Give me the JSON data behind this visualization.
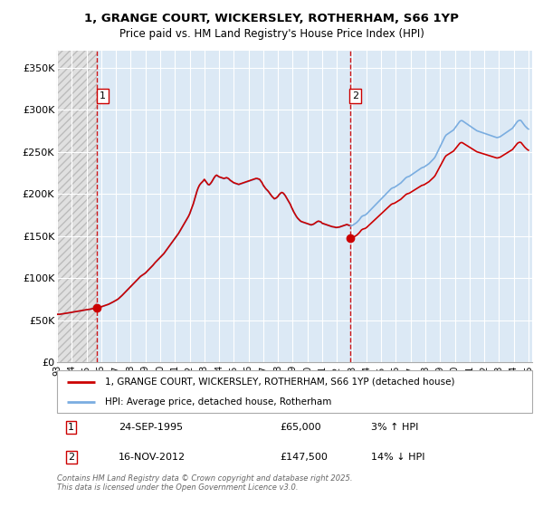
{
  "title_line1": "1, GRANGE COURT, WICKERSLEY, ROTHERHAM, S66 1YP",
  "title_line2": "Price paid vs. HM Land Registry's House Price Index (HPI)",
  "background_color": "#ffffff",
  "plot_bg_color": "#dce9f5",
  "hatch_bg_color": "#e8e8e8",
  "grid_color": "#ffffff",
  "ylim": [
    0,
    370000
  ],
  "yticks": [
    0,
    50000,
    100000,
    150000,
    200000,
    250000,
    300000,
    350000
  ],
  "ytick_labels": [
    "£0",
    "£50K",
    "£100K",
    "£150K",
    "£200K",
    "£250K",
    "£300K",
    "£350K"
  ],
  "legend_line1": "1, GRANGE COURT, WICKERSLEY, ROTHERHAM, S66 1YP (detached house)",
  "legend_line2": "HPI: Average price, detached house, Rotherham",
  "sold_color": "#cc0000",
  "hpi_color": "#7aade0",
  "note1_box": "1",
  "note1_date": "24-SEP-1995",
  "note1_price": "£65,000",
  "note1_hpi": "3% ↑ HPI",
  "note2_box": "2",
  "note2_date": "16-NOV-2012",
  "note2_price": "£147,500",
  "note2_hpi": "14% ↓ HPI",
  "footer": "Contains HM Land Registry data © Crown copyright and database right 2025.\nThis data is licensed under the Open Government Licence v3.0.",
  "hpi_data_x": [
    1993.0,
    1993.083,
    1993.167,
    1993.25,
    1993.333,
    1993.417,
    1993.5,
    1993.583,
    1993.667,
    1993.75,
    1993.833,
    1993.917,
    1994.0,
    1994.083,
    1994.167,
    1994.25,
    1994.333,
    1994.417,
    1994.5,
    1994.583,
    1994.667,
    1994.75,
    1994.833,
    1994.917,
    1995.0,
    1995.083,
    1995.167,
    1995.25,
    1995.333,
    1995.417,
    1995.5,
    1995.583,
    1995.667,
    1995.75,
    1995.833,
    1995.917,
    1996.0,
    1996.083,
    1996.167,
    1996.25,
    1996.333,
    1996.417,
    1996.5,
    1996.583,
    1996.667,
    1996.75,
    1996.833,
    1996.917,
    1997.0,
    1997.083,
    1997.167,
    1997.25,
    1997.333,
    1997.417,
    1997.5,
    1997.583,
    1997.667,
    1997.75,
    1997.833,
    1997.917,
    1998.0,
    1998.083,
    1998.167,
    1998.25,
    1998.333,
    1998.417,
    1998.5,
    1998.583,
    1998.667,
    1998.75,
    1998.833,
    1998.917,
    1999.0,
    1999.083,
    1999.167,
    1999.25,
    1999.333,
    1999.417,
    1999.5,
    1999.583,
    1999.667,
    1999.75,
    1999.833,
    1999.917,
    2000.0,
    2000.083,
    2000.167,
    2000.25,
    2000.333,
    2000.417,
    2000.5,
    2000.583,
    2000.667,
    2000.75,
    2000.833,
    2000.917,
    2001.0,
    2001.083,
    2001.167,
    2001.25,
    2001.333,
    2001.417,
    2001.5,
    2001.583,
    2001.667,
    2001.75,
    2001.833,
    2001.917,
    2002.0,
    2002.083,
    2002.167,
    2002.25,
    2002.333,
    2002.417,
    2002.5,
    2002.583,
    2002.667,
    2002.75,
    2002.833,
    2002.917,
    2003.0,
    2003.083,
    2003.167,
    2003.25,
    2003.333,
    2003.417,
    2003.5,
    2003.583,
    2003.667,
    2003.75,
    2003.833,
    2003.917,
    2004.0,
    2004.083,
    2004.167,
    2004.25,
    2004.333,
    2004.417,
    2004.5,
    2004.583,
    2004.667,
    2004.75,
    2004.833,
    2004.917,
    2005.0,
    2005.083,
    2005.167,
    2005.25,
    2005.333,
    2005.417,
    2005.5,
    2005.583,
    2005.667,
    2005.75,
    2005.833,
    2005.917,
    2006.0,
    2006.083,
    2006.167,
    2006.25,
    2006.333,
    2006.417,
    2006.5,
    2006.583,
    2006.667,
    2006.75,
    2006.833,
    2006.917,
    2007.0,
    2007.083,
    2007.167,
    2007.25,
    2007.333,
    2007.417,
    2007.5,
    2007.583,
    2007.667,
    2007.75,
    2007.833,
    2007.917,
    2008.0,
    2008.083,
    2008.167,
    2008.25,
    2008.333,
    2008.417,
    2008.5,
    2008.583,
    2008.667,
    2008.75,
    2008.833,
    2008.917,
    2009.0,
    2009.083,
    2009.167,
    2009.25,
    2009.333,
    2009.417,
    2009.5,
    2009.583,
    2009.667,
    2009.75,
    2009.833,
    2009.917,
    2010.0,
    2010.083,
    2010.167,
    2010.25,
    2010.333,
    2010.417,
    2010.5,
    2010.583,
    2010.667,
    2010.75,
    2010.833,
    2010.917,
    2011.0,
    2011.083,
    2011.167,
    2011.25,
    2011.333,
    2011.417,
    2011.5,
    2011.583,
    2011.667,
    2011.75,
    2011.833,
    2011.917,
    2012.0,
    2012.083,
    2012.167,
    2012.25,
    2012.333,
    2012.417,
    2012.5,
    2012.583,
    2012.667,
    2012.75,
    2012.833,
    2012.917,
    2013.0,
    2013.083,
    2013.167,
    2013.25,
    2013.333,
    2013.417,
    2013.5,
    2013.583,
    2013.667,
    2013.75,
    2013.833,
    2013.917,
    2014.0,
    2014.083,
    2014.167,
    2014.25,
    2014.333,
    2014.417,
    2014.5,
    2014.583,
    2014.667,
    2014.75,
    2014.833,
    2014.917,
    2015.0,
    2015.083,
    2015.167,
    2015.25,
    2015.333,
    2015.417,
    2015.5,
    2015.583,
    2015.667,
    2015.75,
    2015.833,
    2015.917,
    2016.0,
    2016.083,
    2016.167,
    2016.25,
    2016.333,
    2016.417,
    2016.5,
    2016.583,
    2016.667,
    2016.75,
    2016.833,
    2016.917,
    2017.0,
    2017.083,
    2017.167,
    2017.25,
    2017.333,
    2017.417,
    2017.5,
    2017.583,
    2017.667,
    2017.75,
    2017.833,
    2017.917,
    2018.0,
    2018.083,
    2018.167,
    2018.25,
    2018.333,
    2018.417,
    2018.5,
    2018.583,
    2018.667,
    2018.75,
    2018.833,
    2018.917,
    2019.0,
    2019.083,
    2019.167,
    2019.25,
    2019.333,
    2019.417,
    2019.5,
    2019.583,
    2019.667,
    2019.75,
    2019.833,
    2019.917,
    2020.0,
    2020.083,
    2020.167,
    2020.25,
    2020.333,
    2020.417,
    2020.5,
    2020.583,
    2020.667,
    2020.75,
    2020.833,
    2020.917,
    2021.0,
    2021.083,
    2021.167,
    2021.25,
    2021.333,
    2021.417,
    2021.5,
    2021.583,
    2021.667,
    2021.75,
    2021.833,
    2021.917,
    2022.0,
    2022.083,
    2022.167,
    2022.25,
    2022.333,
    2022.417,
    2022.5,
    2022.583,
    2022.667,
    2022.75,
    2022.833,
    2022.917,
    2023.0,
    2023.083,
    2023.167,
    2023.25,
    2023.333,
    2023.417,
    2023.5,
    2023.583,
    2023.667,
    2023.75,
    2023.833,
    2023.917,
    2024.0,
    2024.083,
    2024.167,
    2024.25,
    2024.333,
    2024.417,
    2024.5,
    2024.583,
    2024.667,
    2024.75,
    2024.833,
    2024.917,
    2025.0
  ],
  "hpi_data_y": [
    57000,
    57200,
    57100,
    57300,
    57500,
    57800,
    58000,
    58300,
    58500,
    58700,
    59000,
    59200,
    59500,
    59800,
    60000,
    60200,
    60500,
    60800,
    61000,
    61200,
    61500,
    61800,
    62000,
    62300,
    62500,
    62700,
    63000,
    63200,
    63500,
    63700,
    64000,
    64200,
    64500,
    65000,
    65300,
    65600,
    66000,
    66500,
    67000,
    67500,
    68000,
    68500,
    69000,
    69800,
    70500,
    71200,
    72000,
    72800,
    73500,
    74500,
    75500,
    76800,
    78000,
    79500,
    81000,
    82500,
    84000,
    85500,
    87000,
    88500,
    90000,
    91500,
    93000,
    94500,
    96000,
    97500,
    99000,
    100500,
    102000,
    103000,
    104000,
    105000,
    106000,
    107500,
    109000,
    110500,
    112000,
    113500,
    115000,
    116800,
    118500,
    120000,
    121500,
    123000,
    124500,
    126000,
    127500,
    129000,
    131000,
    133000,
    135000,
    137000,
    139000,
    141000,
    143000,
    145000,
    147000,
    149000,
    151000,
    153000,
    155500,
    158000,
    160500,
    163000,
    165500,
    168000,
    170500,
    173000,
    176000,
    180000,
    184000,
    188000,
    193000,
    198000,
    203000,
    207000,
    210000,
    212000,
    213500,
    215000,
    217000,
    215000,
    213000,
    211000,
    210500,
    212000,
    214000,
    216500,
    219000,
    221000,
    222000,
    221000,
    220000,
    219500,
    219000,
    218500,
    218000,
    218500,
    219000,
    218500,
    217500,
    216000,
    215000,
    214000,
    213000,
    212500,
    212000,
    211500,
    211000,
    211500,
    212000,
    212500,
    213000,
    213500,
    214000,
    214500,
    215000,
    215500,
    216000,
    216500,
    217000,
    217500,
    218000,
    218000,
    217500,
    217000,
    215000,
    213000,
    210000,
    208000,
    206000,
    204500,
    203000,
    201000,
    199000,
    197000,
    195500,
    194000,
    194500,
    195500,
    197000,
    199000,
    200500,
    201500,
    201000,
    199500,
    197500,
    195000,
    192500,
    190000,
    187500,
    184000,
    181000,
    178000,
    175500,
    173000,
    171000,
    169500,
    168000,
    167000,
    166500,
    166000,
    165500,
    165000,
    164500,
    164000,
    163500,
    163000,
    163500,
    164000,
    165000,
    166000,
    167000,
    167500,
    167000,
    166500,
    165000,
    164500,
    164000,
    163500,
    163000,
    162500,
    162000,
    161500,
    161000,
    160800,
    160500,
    160000,
    160000,
    160200,
    160500,
    161000,
    161500,
    162000,
    162500,
    163000,
    163500,
    163000,
    162500,
    162000,
    162500,
    163000,
    164000,
    165000,
    166000,
    167500,
    169000,
    171000,
    173000,
    174000,
    174500,
    175000,
    176000,
    177500,
    179000,
    180500,
    182000,
    183500,
    185000,
    186500,
    188000,
    189500,
    191000,
    192500,
    194000,
    195500,
    197000,
    198500,
    200000,
    201500,
    203000,
    204500,
    206000,
    207000,
    207500,
    208000,
    209000,
    210000,
    211000,
    212000,
    213000,
    214500,
    216000,
    217500,
    219000,
    220000,
    220500,
    221000,
    222000,
    223000,
    224000,
    225000,
    226000,
    227000,
    228000,
    229000,
    230000,
    231000,
    231500,
    232000,
    233000,
    234000,
    235000,
    236000,
    237500,
    239000,
    240500,
    242000,
    244000,
    247000,
    250000,
    253000,
    256000,
    259000,
    262000,
    265000,
    268000,
    270000,
    271000,
    272000,
    273000,
    274000,
    275000,
    276000,
    278000,
    280000,
    282000,
    284000,
    286000,
    287000,
    287000,
    286000,
    285000,
    284000,
    283000,
    282000,
    281000,
    280000,
    279000,
    278000,
    277000,
    276000,
    275000,
    274500,
    274000,
    273500,
    273000,
    272500,
    272000,
    271500,
    271000,
    270500,
    270000,
    269500,
    269000,
    268500,
    268000,
    267500,
    267000,
    267000,
    267500,
    268000,
    269000,
    270000,
    271000,
    272000,
    273000,
    274000,
    275000,
    276000,
    277000,
    278000,
    280000,
    282000,
    284000,
    286000,
    287000,
    287500,
    287000,
    285000,
    283000,
    281000,
    279500,
    278000,
    277000
  ],
  "sold_data_x": [
    1995.73,
    2012.88
  ],
  "sold_data_y": [
    65000,
    147500
  ],
  "dashed_line1_x": 1995.73,
  "dashed_line2_x": 2012.88,
  "hatch_end_x": 1995.73,
  "xmin": 1993.0,
  "xmax": 2025.25,
  "xtick_start": 1993,
  "xtick_end": 2025
}
